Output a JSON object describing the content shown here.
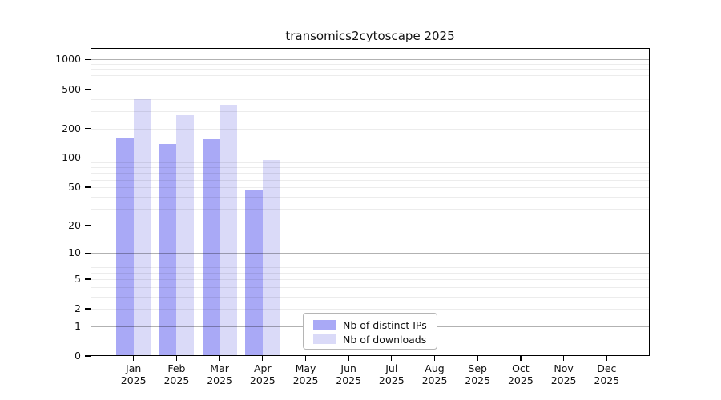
{
  "title": "transomics2cytoscape 2025",
  "legend": {
    "items": [
      {
        "label": "Nb of distinct IPs",
        "color": "#a9a9f6"
      },
      {
        "label": "Nb of downloads",
        "color": "#dadaf8"
      }
    ]
  },
  "chart_data": {
    "type": "bar",
    "title": "transomics2cytoscape 2025",
    "categories": [
      {
        "month": "Jan",
        "year": "2025"
      },
      {
        "month": "Feb",
        "year": "2025"
      },
      {
        "month": "Mar",
        "year": "2025"
      },
      {
        "month": "Apr",
        "year": "2025"
      },
      {
        "month": "May",
        "year": "2025"
      },
      {
        "month": "Jun",
        "year": "2025"
      },
      {
        "month": "Jul",
        "year": "2025"
      },
      {
        "month": "Aug",
        "year": "2025"
      },
      {
        "month": "Sep",
        "year": "2025"
      },
      {
        "month": "Oct",
        "year": "2025"
      },
      {
        "month": "Nov",
        "year": "2025"
      },
      {
        "month": "Dec",
        "year": "2025"
      }
    ],
    "series": [
      {
        "name": "Nb of distinct IPs",
        "color": "#a9a9f6",
        "values": [
          162,
          138,
          155,
          47,
          0,
          0,
          0,
          0,
          0,
          0,
          0,
          0
        ]
      },
      {
        "name": "Nb of downloads",
        "color": "#dadaf8",
        "values": [
          395,
          272,
          350,
          96,
          0,
          0,
          0,
          0,
          0,
          0,
          0,
          0
        ]
      }
    ],
    "xlabel": "",
    "ylabel": "",
    "yscale": "log10(value+1)",
    "yticks": [
      0,
      1,
      2,
      5,
      10,
      20,
      50,
      100,
      200,
      500,
      1000
    ],
    "ylim": [
      0,
      1310
    ],
    "grid": "horizontal, minor light + decade darker, drawn over bars",
    "legend_position": "lower center"
  }
}
